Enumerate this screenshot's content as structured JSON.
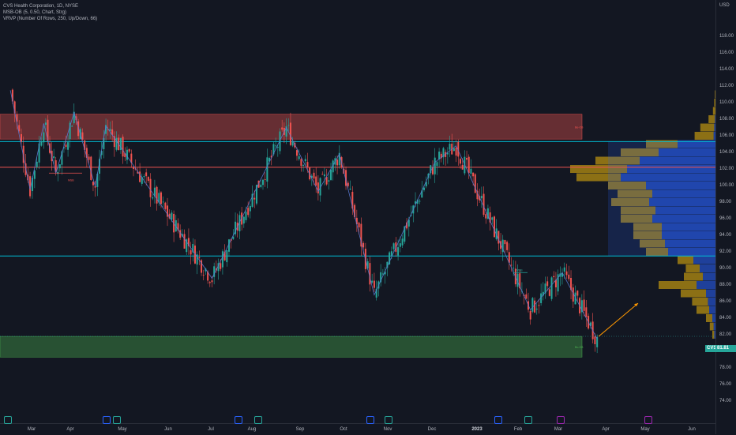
{
  "legend": {
    "line1": "CVS Health Corporation, 1D, NYSE",
    "line2": "MSB-OB (5, 0.50, Chart, Strg)",
    "line3": "VRVP (Number Of Rows, 250, Up/Down, 66)"
  },
  "currency": "USD",
  "price_labels": [
    "118.00",
    "116.00",
    "114.00",
    "112.00",
    "110.00",
    "108.00",
    "106.00",
    "104.00",
    "102.00",
    "100.00",
    "98.00",
    "96.00",
    "94.00",
    "92.00",
    "90.00",
    "88.00",
    "86.00",
    "84.00",
    "82.00",
    "80.00",
    "78.00",
    "76.00",
    "74.00"
  ],
  "time_labels": [
    "Mar",
    "Apr",
    "May",
    "Jun",
    "Jul",
    "Aug",
    "Sep",
    "Oct",
    "Nov",
    "Dec",
    "2023",
    "Feb",
    "Mar",
    "Apr",
    "May",
    "Jun"
  ],
  "current_price": {
    "symbol": "CVS",
    "value": "81.81"
  },
  "annotations": {
    "msb": "MSB",
    "bu_ob": "Bu-OB",
    "be_ob": "Be-OB"
  },
  "colors": {
    "background": "#131722",
    "up": "#26a69a",
    "down": "#ef5350",
    "bear_zone": "#ef5350",
    "bull_zone": "#4caf50",
    "level_line": "#00bcd4",
    "vp_up": "#2962ff",
    "vp_down": "#f0b90b"
  },
  "chart_data": {
    "type": "candlestick",
    "symbol": "CVS",
    "ylim": [
      73,
      120
    ],
    "yaxis_ticks": [
      74,
      76,
      78,
      80,
      82,
      84,
      86,
      88,
      90,
      92,
      94,
      96,
      98,
      100,
      102,
      104,
      106,
      108,
      110,
      112,
      114,
      116,
      118
    ],
    "horizontal_levels": [
      105.3,
      102.2,
      91.5
    ],
    "zones": [
      {
        "kind": "bearish_order_block",
        "from": 105.6,
        "to": 108.6
      },
      {
        "kind": "bullish_order_block",
        "from": 79.3,
        "to": 81.8
      }
    ],
    "last_price": 81.81,
    "swing_path": [
      {
        "date": "2022-02-15",
        "price": 111.5
      },
      {
        "date": "2022-02-28",
        "price": 99.5
      },
      {
        "date": "2022-03-09",
        "price": 107.5
      },
      {
        "date": "2022-03-17",
        "price": 101.5
      },
      {
        "date": "2022-03-29",
        "price": 108.8
      },
      {
        "date": "2022-04-12",
        "price": 99.9
      },
      {
        "date": "2022-04-19",
        "price": 107.2
      },
      {
        "date": "2022-06-28",
        "price": 88.8
      },
      {
        "date": "2022-08-16",
        "price": 107.0
      },
      {
        "date": "2022-09-06",
        "price": 99.3
      },
      {
        "date": "2022-09-20",
        "price": 103.8
      },
      {
        "date": "2022-10-13",
        "price": 86.8
      },
      {
        "date": "2022-11-22",
        "price": 102.8
      },
      {
        "date": "2022-12-06",
        "price": 104.8
      },
      {
        "date": "2023-01-24",
        "price": 85.0
      },
      {
        "date": "2023-02-14",
        "price": 89.5
      },
      {
        "date": "2023-03-09",
        "price": 81.5
      }
    ],
    "projection": {
      "from": {
        "date": "2023-03-10",
        "price": 81.8
      },
      "to": {
        "date": "2023-04-05",
        "price": 85.8
      }
    }
  },
  "volume_profile": [
    [
      1,
      1,
      0,
      0
    ],
    [
      111,
      2,
      0,
      1
    ],
    [
      110,
      2,
      0,
      2
    ],
    [
      109,
      3,
      0,
      4
    ],
    [
      108,
      3,
      1,
      10
    ],
    [
      107,
      4,
      2,
      22
    ],
    [
      106,
      5,
      3,
      30
    ],
    [
      105,
      8,
      60,
      50
    ],
    [
      104,
      10,
      90,
      60
    ],
    [
      103,
      12,
      120,
      70
    ],
    [
      102,
      14,
      140,
      90
    ],
    [
      101,
      15,
      150,
      70
    ],
    [
      100,
      14,
      110,
      60
    ],
    [
      99,
      12,
      100,
      55
    ],
    [
      98,
      13,
      105,
      60
    ],
    [
      97,
      11,
      95,
      55
    ],
    [
      96,
      12,
      100,
      50
    ],
    [
      95,
      10,
      85,
      45
    ],
    [
      94,
      10,
      85,
      45
    ],
    [
      93,
      9,
      80,
      40
    ],
    [
      92,
      8,
      75,
      35
    ],
    [
      91,
      5,
      35,
      25
    ],
    [
      90,
      4,
      25,
      22
    ],
    [
      89,
      4,
      20,
      30
    ],
    [
      88,
      5,
      30,
      60
    ],
    [
      87,
      3,
      15,
      40
    ],
    [
      86,
      2,
      12,
      25
    ],
    [
      85,
      2,
      10,
      20
    ],
    [
      84,
      1,
      5,
      10
    ],
    [
      83,
      1,
      3,
      6
    ],
    [
      82,
      1,
      2,
      3
    ]
  ]
}
